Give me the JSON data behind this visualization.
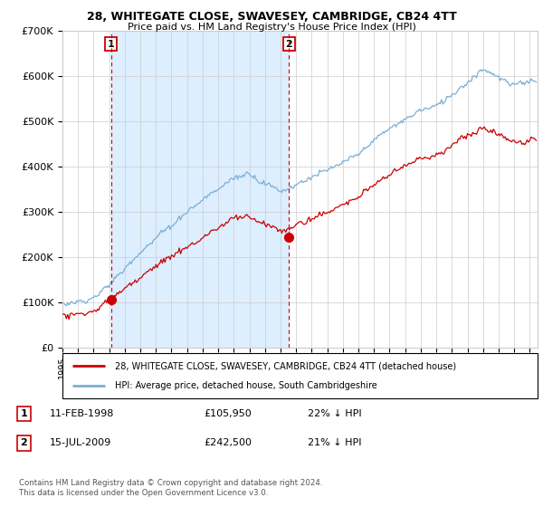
{
  "title1": "28, WHITEGATE CLOSE, SWAVESEY, CAMBRIDGE, CB24 4TT",
  "title2": "Price paid vs. HM Land Registry's House Price Index (HPI)",
  "ylim": [
    0,
    700000
  ],
  "yticks": [
    0,
    100000,
    200000,
    300000,
    400000,
    500000,
    600000,
    700000
  ],
  "ytick_labels": [
    "£0",
    "£100K",
    "£200K",
    "£300K",
    "£400K",
    "£500K",
    "£600K",
    "£700K"
  ],
  "sale1_x": 1998.11,
  "sale1_price": 105950,
  "sale2_x": 2009.54,
  "sale2_price": 242500,
  "legend_line1": "28, WHITEGATE CLOSE, SWAVESEY, CAMBRIDGE, CB24 4TT (detached house)",
  "legend_line2": "HPI: Average price, detached house, South Cambridgeshire",
  "footer": "Contains HM Land Registry data © Crown copyright and database right 2024.\nThis data is licensed under the Open Government Licence v3.0.",
  "grid_color": "#cccccc",
  "hpi_color": "#7bafd4",
  "price_color": "#cc0000",
  "shade_color": "#ddeeff",
  "bg_color": "#ffffff",
  "xmin": 1995,
  "xmax": 2025.5,
  "sale1_label": "1",
  "sale2_label": "2",
  "sale1_date_text": "11-FEB-1998",
  "sale1_price_text": "£105,950",
  "sale1_pct_text": "22% ↓ HPI",
  "sale2_date_text": "15-JUL-2009",
  "sale2_price_text": "£242,500",
  "sale2_pct_text": "21% ↓ HPI"
}
